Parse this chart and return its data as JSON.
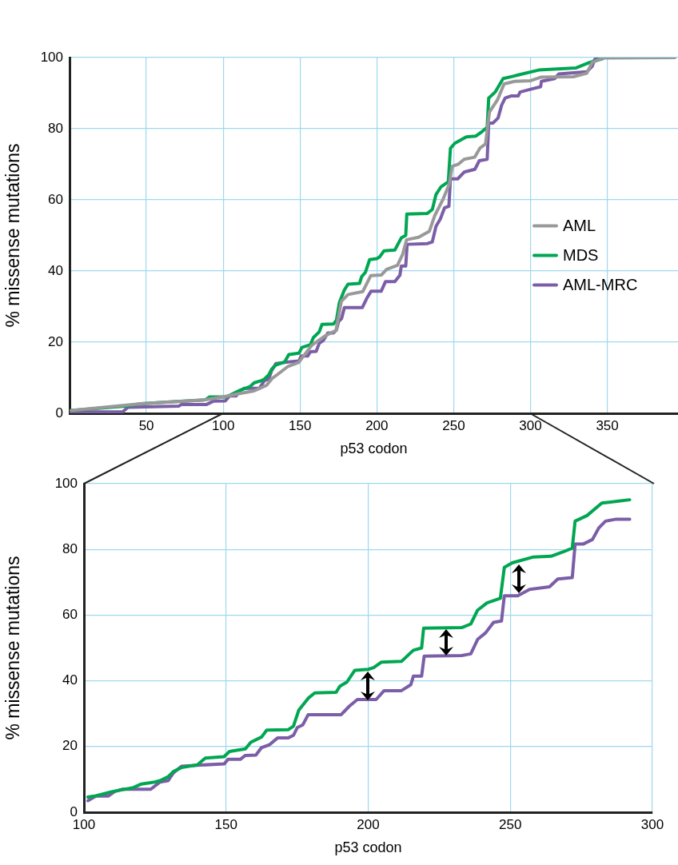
{
  "chart_data": [
    {
      "type": "line",
      "xlabel": "p53 codon",
      "ylabel": "% missense mutations",
      "xlim": [
        0,
        396
      ],
      "ylim": [
        0,
        100
      ],
      "xticks": [
        50,
        100,
        150,
        200,
        250,
        300,
        350
      ],
      "yticks": [
        0,
        20,
        40,
        60,
        80,
        100
      ],
      "grid": true,
      "legend": "right",
      "series": [
        {
          "name": "AML",
          "color": "#999999",
          "x": [
            1,
            46.7,
            88.4,
            100,
            110,
            120,
            128.3,
            131.8,
            135.3,
            142.2,
            149.1,
            157.8,
            166.5,
            173.4,
            176.9,
            181.3,
            190.8,
            196,
            203,
            206.4,
            213.4,
            216.8,
            219.4,
            227.2,
            234.2,
            237.6,
            242.9,
            247.2,
            249,
            253.3,
            256.8,
            263.7,
            267.2,
            270.7,
            273.3,
            278.5,
            282.8,
            289.7,
            300.1,
            307.1,
            327.9,
            336.6,
            340.1,
            347,
            393.8
          ],
          "values": [
            0.8,
            2.7,
            3.8,
            4.6,
            5.5,
            6.3,
            7.9,
            9.8,
            10.9,
            13.2,
            14.3,
            19.2,
            21.8,
            23.3,
            31.5,
            33.4,
            34.2,
            38.7,
            38.9,
            40.5,
            41.6,
            44.7,
            48.8,
            49.5,
            51.2,
            55.5,
            60,
            64.5,
            69.4,
            70.1,
            71.4,
            72,
            74.6,
            75.7,
            84.7,
            88.1,
            92.6,
            93.3,
            93.5,
            94.5,
            94.6,
            95.6,
            98.6,
            99.9,
            100
          ]
        },
        {
          "name": "MDS",
          "color": "#00a651",
          "x": [
            1,
            15.5,
            36.3,
            46.7,
            60.6,
            88.4,
            91,
            102,
            110,
            117.4,
            120.2,
            124.9,
            126.8,
            129.6,
            131.5,
            134.3,
            139.9,
            142.7,
            149.3,
            151.2,
            156.8,
            158.7,
            162.5,
            164.3,
            171.8,
            173.7,
            175.6,
            178.9,
            181.2,
            188.7,
            190.1,
            192.5,
            195.3,
            200,
            201.9,
            204.7,
            211.7,
            215.9,
            218.8,
            219.5,
            232.9,
            236.1,
            238.5,
            241.8,
            246.5,
            247.9,
            250.7,
            258.2,
            264.3,
            268.5,
            271.8,
            272.8,
            277,
            282.2,
            288.2,
            292,
            305.4,
            329.7,
            338.4,
            347
          ],
          "values": [
            0.8,
            1.3,
            2,
            2.7,
            3.1,
            3.8,
            4.6,
            4.6,
            6.3,
            7.5,
            8.6,
            9.2,
            9.6,
            10.8,
            12.4,
            13.6,
            14.4,
            16.5,
            16.9,
            18.5,
            19.3,
            21.3,
            22.9,
            25,
            25.1,
            26.2,
            31.1,
            34.7,
            36.3,
            36.5,
            38.4,
            39.6,
            43.2,
            43.5,
            44,
            45.7,
            45.9,
            49.3,
            50,
            56,
            56.2,
            57.3,
            61.5,
            63.7,
            65.1,
            74.5,
            75.9,
            77.7,
            77.9,
            79.2,
            80.4,
            88.6,
            90.3,
            94.1,
            94.7,
            95.1,
            96.5,
            97.1,
            98.6,
            99.7
          ]
        },
        {
          "name": "AML-MRC",
          "color": "#7b5ea7",
          "x": [
            1,
            34.5,
            38,
            71,
            72.8,
            89.2,
            93.6,
            101.4,
            104.2,
            108.5,
            110.8,
            113.6,
            123.5,
            126.8,
            129.6,
            131.5,
            134.3,
            139.9,
            149.3,
            150.7,
            155,
            156.8,
            160.5,
            162.5,
            165.2,
            168.1,
            171.8,
            173.7,
            175.1,
            177,
            178.9,
            190.5,
            193.4,
            196.2,
            201.9,
            202.8,
            205.6,
            211.7,
            215,
            215.9,
            218.8,
            219.7,
            232.9,
            236.1,
            238.5,
            241.3,
            244.1,
            246.9,
            247.9,
            252.6,
            256.8,
            263.8,
            266.7,
            271.8,
            272.8,
            275.6,
            278.9,
            281.2,
            283.5,
            287.3,
            292,
            293.2,
            300.1,
            306.6,
            307.1,
            315.8,
            318.4,
            336.6,
            340.1,
            341.8,
            347,
            393.8
          ],
          "values": [
            0.4,
            0.4,
            1.7,
            2,
            2.5,
            2.5,
            3.4,
            3.5,
            4.9,
            4.9,
            6.3,
            7,
            7,
            9.2,
            9.6,
            12,
            14,
            14.3,
            14.7,
            16.1,
            16.1,
            17.3,
            17.4,
            19.7,
            20.5,
            22.6,
            22.6,
            23.4,
            25.8,
            26.6,
            29.7,
            29.7,
            32.3,
            34.3,
            34.3,
            34.3,
            37,
            37,
            38.8,
            41.4,
            41.4,
            47.5,
            47.7,
            48.2,
            52.6,
            54.6,
            57.8,
            58.2,
            65.9,
            65.9,
            67.8,
            68.6,
            71,
            71.4,
            81.6,
            81.6,
            83,
            86.6,
            88.6,
            89.2,
            89.2,
            90.3,
            91.1,
            91.8,
            93.3,
            94.1,
            95.4,
            96,
            97.5,
            99.5,
            100,
            100
          ]
        }
      ]
    },
    {
      "type": "line",
      "xlabel": "p53 codon",
      "ylabel": "% missense mutations",
      "xlim": [
        100,
        300
      ],
      "ylim": [
        0,
        100
      ],
      "xticks": [
        100,
        150,
        200,
        250,
        300
      ],
      "yticks": [
        0,
        20,
        40,
        60,
        80,
        100
      ],
      "grid": true,
      "series": [
        {
          "color": "#00a651",
          "x": [
            101.4,
            104.2,
            110,
            117.4,
            120.2,
            124.9,
            126.8,
            129.6,
            131.5,
            134.3,
            139.9,
            142.7,
            149.3,
            151.2,
            156.8,
            158.7,
            162.5,
            164.3,
            171.8,
            173.7,
            175.6,
            178.9,
            181.2,
            188.7,
            190.1,
            192.5,
            195.3,
            200,
            201.9,
            204.7,
            211.7,
            215.9,
            218.8,
            219.5,
            232.9,
            236.1,
            238.5,
            241.8,
            246.5,
            247.9,
            250.7,
            258.2,
            264.3,
            268.5,
            271.8,
            272.8,
            277,
            282.2,
            288.2,
            292
          ],
          "values": [
            4.6,
            5,
            6.3,
            7.5,
            8.6,
            9.2,
            9.6,
            10.8,
            12.4,
            13.6,
            14.4,
            16.5,
            16.9,
            18.5,
            19.3,
            21.3,
            22.9,
            25,
            25.1,
            26.2,
            31.1,
            34.7,
            36.3,
            36.5,
            38.4,
            39.6,
            43.2,
            43.5,
            44,
            45.7,
            45.9,
            49.3,
            50,
            56,
            56.2,
            57.3,
            61.5,
            63.7,
            65.1,
            74.5,
            75.9,
            77.7,
            77.9,
            79.2,
            80.4,
            88.6,
            90.3,
            94.1,
            94.7,
            95.1
          ]
        },
        {
          "color": "#7b5ea7",
          "x": [
            101.4,
            104.2,
            108.5,
            110.8,
            113.6,
            123.5,
            126.8,
            129.6,
            131.5,
            134.3,
            139.9,
            149.3,
            150.7,
            155,
            156.8,
            160.5,
            162.5,
            165.2,
            168.1,
            171.8,
            173.7,
            175.1,
            177,
            178.9,
            190.5,
            193.4,
            196.2,
            201.9,
            202.8,
            205.6,
            211.7,
            215,
            215.9,
            218.8,
            219.7,
            232.9,
            236.1,
            238.5,
            241.3,
            244.1,
            246.9,
            247.9,
            252.6,
            256.8,
            263.8,
            266.7,
            271.8,
            272.8,
            275.6,
            278.9,
            281.2,
            283.5,
            287.3,
            292
          ],
          "values": [
            3.5,
            4.9,
            4.9,
            6.3,
            7,
            7,
            9.2,
            9.6,
            12,
            14,
            14.3,
            14.7,
            16.1,
            16.1,
            17.3,
            17.4,
            19.7,
            20.5,
            22.6,
            22.6,
            23.4,
            25.8,
            26.6,
            29.7,
            29.7,
            32.3,
            34.3,
            34.3,
            34.3,
            37,
            37,
            38.8,
            41.4,
            41.4,
            47.5,
            47.7,
            48.2,
            52.6,
            54.6,
            57.8,
            58.2,
            65.9,
            65.9,
            67.8,
            68.6,
            71,
            71.4,
            81.6,
            81.6,
            83,
            86.6,
            88.6,
            89.2,
            89.2
          ]
        }
      ]
    }
  ]
}
